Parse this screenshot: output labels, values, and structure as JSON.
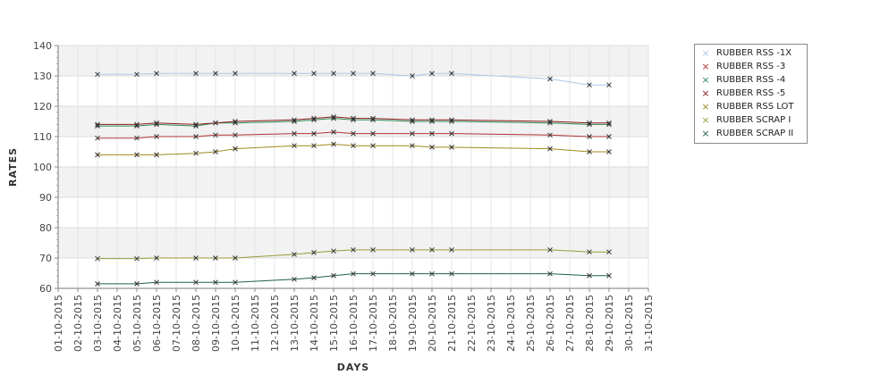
{
  "chart_data": {
    "type": "line",
    "xlabel": "DAYS",
    "ylabel": "RATES",
    "ylim": [
      60,
      140
    ],
    "yticks": [
      60,
      70,
      80,
      90,
      100,
      110,
      120,
      130,
      140
    ],
    "categories": [
      "01-10-2015",
      "02-10-2015",
      "03-10-2015",
      "04-10-2015",
      "05-10-2015",
      "06-10-2015",
      "07-10-2015",
      "08-10-2015",
      "09-10-2015",
      "10-10-2015",
      "11-10-2015",
      "12-10-2015",
      "13-10-2015",
      "14-10-2015",
      "15-10-2015",
      "16-10-2015",
      "17-10-2015",
      "18-10-2015",
      "19-10-2015",
      "20-10-2015",
      "21-10-2015",
      "22-10-2015",
      "23-10-2015",
      "24-10-2015",
      "25-10-2015",
      "26-10-2015",
      "27-10-2015",
      "28-10-2015",
      "29-10-2015",
      "30-10-2015",
      "31-10-2015"
    ],
    "grid": true,
    "legend_position": "right",
    "series": [
      {
        "name": "RUBBER RSS -1X",
        "color": "#a9c8e8",
        "points": [
          [
            "03-10-2015",
            130.5
          ],
          [
            "05-10-2015",
            130.5
          ],
          [
            "06-10-2015",
            130.8
          ],
          [
            "08-10-2015",
            130.8
          ],
          [
            "09-10-2015",
            130.8
          ],
          [
            "10-10-2015",
            130.8
          ],
          [
            "13-10-2015",
            130.8
          ],
          [
            "14-10-2015",
            130.8
          ],
          [
            "15-10-2015",
            130.8
          ],
          [
            "16-10-2015",
            130.8
          ],
          [
            "17-10-2015",
            130.8
          ],
          [
            "19-10-2015",
            130
          ],
          [
            "20-10-2015",
            130.8
          ],
          [
            "21-10-2015",
            130.8
          ],
          [
            "26-10-2015",
            129
          ],
          [
            "28-10-2015",
            127
          ],
          [
            "29-10-2015",
            127
          ]
        ]
      },
      {
        "name": "RUBBER RSS -3",
        "color": "#b03434",
        "points": [
          [
            "03-10-2015",
            109.5
          ],
          [
            "05-10-2015",
            109.5
          ],
          [
            "06-10-2015",
            110
          ],
          [
            "08-10-2015",
            110
          ],
          [
            "09-10-2015",
            110.5
          ],
          [
            "10-10-2015",
            110.5
          ],
          [
            "13-10-2015",
            111
          ],
          [
            "14-10-2015",
            111
          ],
          [
            "15-10-2015",
            111.5
          ],
          [
            "16-10-2015",
            111
          ],
          [
            "17-10-2015",
            111
          ],
          [
            "19-10-2015",
            111
          ],
          [
            "20-10-2015",
            111
          ],
          [
            "21-10-2015",
            111
          ],
          [
            "26-10-2015",
            110.5
          ],
          [
            "28-10-2015",
            110
          ],
          [
            "29-10-2015",
            110
          ]
        ]
      },
      {
        "name": "RUBBER RSS -4",
        "color": "#2e8b57",
        "points": [
          [
            "03-10-2015",
            113.5
          ],
          [
            "05-10-2015",
            113.5
          ],
          [
            "06-10-2015",
            114
          ],
          [
            "08-10-2015",
            113.5
          ],
          [
            "09-10-2015",
            114.5
          ],
          [
            "10-10-2015",
            114.5
          ],
          [
            "13-10-2015",
            115
          ],
          [
            "14-10-2015",
            115.5
          ],
          [
            "15-10-2015",
            116
          ],
          [
            "16-10-2015",
            115.5
          ],
          [
            "17-10-2015",
            115.5
          ],
          [
            "19-10-2015",
            115
          ],
          [
            "20-10-2015",
            115
          ],
          [
            "21-10-2015",
            115
          ],
          [
            "26-10-2015",
            114.5
          ],
          [
            "28-10-2015",
            114
          ],
          [
            "29-10-2015",
            114
          ]
        ]
      },
      {
        "name": "RUBBER RSS -5",
        "color": "#8b1a1a",
        "points": [
          [
            "03-10-2015",
            114
          ],
          [
            "05-10-2015",
            114
          ],
          [
            "06-10-2015",
            114.5
          ],
          [
            "08-10-2015",
            114
          ],
          [
            "09-10-2015",
            114.5
          ],
          [
            "10-10-2015",
            115
          ],
          [
            "13-10-2015",
            115.5
          ],
          [
            "14-10-2015",
            116
          ],
          [
            "15-10-2015",
            116.5
          ],
          [
            "16-10-2015",
            116
          ],
          [
            "17-10-2015",
            116
          ],
          [
            "19-10-2015",
            115.5
          ],
          [
            "20-10-2015",
            115.5
          ],
          [
            "21-10-2015",
            115.5
          ],
          [
            "26-10-2015",
            115
          ],
          [
            "28-10-2015",
            114.5
          ],
          [
            "29-10-2015",
            114.5
          ]
        ]
      },
      {
        "name": "RUBBER RSS LOT",
        "color": "#a08a1e",
        "points": [
          [
            "03-10-2015",
            104
          ],
          [
            "05-10-2015",
            104
          ],
          [
            "06-10-2015",
            104
          ],
          [
            "08-10-2015",
            104.5
          ],
          [
            "09-10-2015",
            105
          ],
          [
            "10-10-2015",
            106
          ],
          [
            "13-10-2015",
            107
          ],
          [
            "14-10-2015",
            107
          ],
          [
            "15-10-2015",
            107.5
          ],
          [
            "16-10-2015",
            107
          ],
          [
            "17-10-2015",
            107
          ],
          [
            "19-10-2015",
            107
          ],
          [
            "20-10-2015",
            106.5
          ],
          [
            "21-10-2015",
            106.5
          ],
          [
            "26-10-2015",
            106
          ],
          [
            "28-10-2015",
            105
          ],
          [
            "29-10-2015",
            105
          ]
        ]
      },
      {
        "name": "RUBBER SCRAP I",
        "color": "#9a9a3a",
        "points": [
          [
            "03-10-2015",
            69.8
          ],
          [
            "05-10-2015",
            69.8
          ],
          [
            "06-10-2015",
            70
          ],
          [
            "08-10-2015",
            70
          ],
          [
            "09-10-2015",
            70
          ],
          [
            "10-10-2015",
            70
          ],
          [
            "13-10-2015",
            71.2
          ],
          [
            "14-10-2015",
            71.8
          ],
          [
            "15-10-2015",
            72.3
          ],
          [
            "16-10-2015",
            72.7
          ],
          [
            "17-10-2015",
            72.7
          ],
          [
            "19-10-2015",
            72.7
          ],
          [
            "20-10-2015",
            72.7
          ],
          [
            "21-10-2015",
            72.7
          ],
          [
            "26-10-2015",
            72.7
          ],
          [
            "28-10-2015",
            72
          ],
          [
            "29-10-2015",
            72
          ]
        ]
      },
      {
        "name": "RUBBER SCRAP II",
        "color": "#1f5f4f",
        "points": [
          [
            "03-10-2015",
            61.5
          ],
          [
            "05-10-2015",
            61.5
          ],
          [
            "06-10-2015",
            62
          ],
          [
            "08-10-2015",
            62
          ],
          [
            "09-10-2015",
            62
          ],
          [
            "10-10-2015",
            62
          ],
          [
            "13-10-2015",
            63
          ],
          [
            "14-10-2015",
            63.5
          ],
          [
            "15-10-2015",
            64.2
          ],
          [
            "16-10-2015",
            64.8
          ],
          [
            "17-10-2015",
            64.8
          ],
          [
            "19-10-2015",
            64.8
          ],
          [
            "20-10-2015",
            64.8
          ],
          [
            "21-10-2015",
            64.8
          ],
          [
            "26-10-2015",
            64.8
          ],
          [
            "28-10-2015",
            64.2
          ],
          [
            "29-10-2015",
            64.2
          ]
        ]
      }
    ]
  }
}
